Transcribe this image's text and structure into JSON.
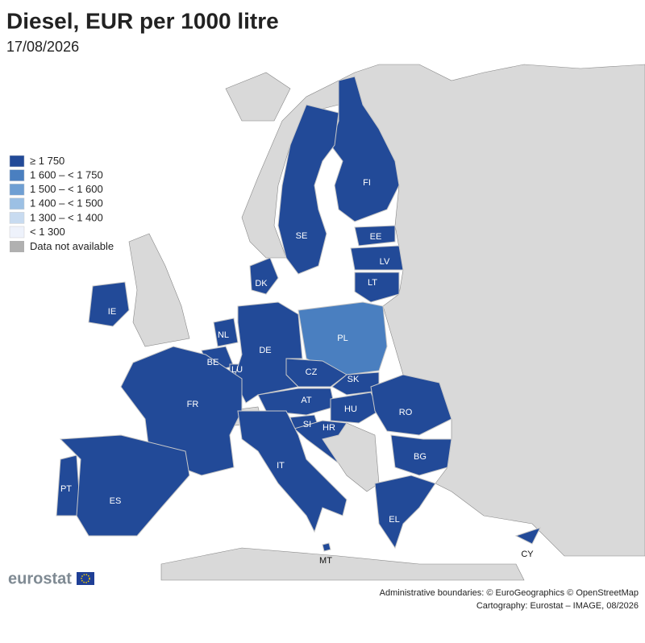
{
  "header": {
    "title": "Diesel, EUR per 1000 litre",
    "subtitle": "17/08/2026"
  },
  "legend": {
    "items": [
      {
        "label": "≥ 1 750",
        "color": "#224a98"
      },
      {
        "label": "1 600 – < 1 750",
        "color": "#4a7fc0"
      },
      {
        "label": "1 500 – < 1 600",
        "color": "#6f9fd3"
      },
      {
        "label": "1 400 – < 1 500",
        "color": "#9cc0e4"
      },
      {
        "label": "1 300 – < 1 400",
        "color": "#c8dbf0"
      },
      {
        "label": "< 1 300",
        "color": "#eef2fb"
      }
    ],
    "not_available": {
      "label": "Data not available",
      "color": "#b0b0b0"
    }
  },
  "countries": [
    {
      "label": "FI",
      "color": "#224a98"
    },
    {
      "label": "SE",
      "color": "#224a98"
    },
    {
      "label": "EE",
      "color": "#224a98"
    },
    {
      "label": "LV",
      "color": "#224a98"
    },
    {
      "label": "LT",
      "color": "#224a98"
    },
    {
      "label": "DK",
      "color": "#224a98"
    },
    {
      "label": "IE",
      "color": "#224a98"
    },
    {
      "label": "NL",
      "color": "#224a98"
    },
    {
      "label": "BE",
      "color": "#224a98"
    },
    {
      "label": "LU",
      "color": "#224a98"
    },
    {
      "label": "DE",
      "color": "#224a98"
    },
    {
      "label": "PL",
      "color": "#4a7fc0"
    },
    {
      "label": "CZ",
      "color": "#224a98"
    },
    {
      "label": "SK",
      "color": "#224a98"
    },
    {
      "label": "AT",
      "color": "#224a98"
    },
    {
      "label": "HU",
      "color": "#224a98"
    },
    {
      "label": "RO",
      "color": "#224a98"
    },
    {
      "label": "FR",
      "color": "#224a98"
    },
    {
      "label": "SI",
      "color": "#224a98"
    },
    {
      "label": "HR",
      "color": "#224a98"
    },
    {
      "label": "BG",
      "color": "#224a98"
    },
    {
      "label": "IT",
      "color": "#224a98"
    },
    {
      "label": "PT",
      "color": "#224a98"
    },
    {
      "label": "ES",
      "color": "#224a98"
    },
    {
      "label": "EL",
      "color": "#224a98"
    },
    {
      "label": "MT",
      "color": "#224a98"
    },
    {
      "label": "CY",
      "color": "#224a98"
    }
  ],
  "footer": {
    "logo": "eurostat",
    "credits": [
      "Administrative boundaries: © EuroGeographics © OpenStreetMap",
      "Cartography: Eurostat – IMAGE, 08/2026"
    ]
  }
}
